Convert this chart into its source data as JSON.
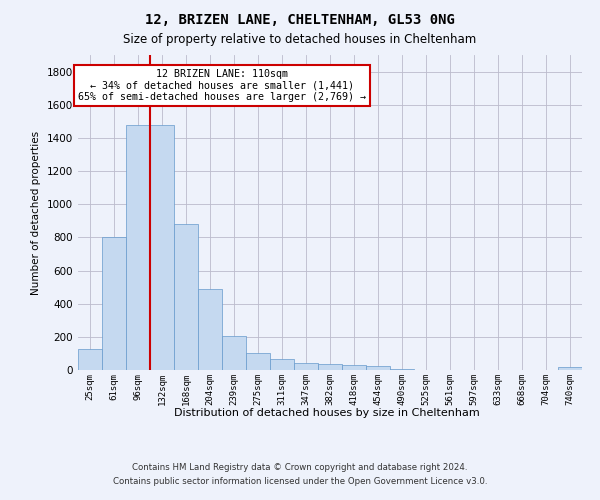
{
  "title1": "12, BRIZEN LANE, CHELTENHAM, GL53 0NG",
  "title2": "Size of property relative to detached houses in Cheltenham",
  "xlabel": "Distribution of detached houses by size in Cheltenham",
  "ylabel": "Number of detached properties",
  "categories": [
    "25sqm",
    "61sqm",
    "96sqm",
    "132sqm",
    "168sqm",
    "204sqm",
    "239sqm",
    "275sqm",
    "311sqm",
    "347sqm",
    "382sqm",
    "418sqm",
    "454sqm",
    "490sqm",
    "525sqm",
    "561sqm",
    "597sqm",
    "633sqm",
    "668sqm",
    "704sqm",
    "740sqm"
  ],
  "values": [
    125,
    800,
    1480,
    1480,
    880,
    490,
    205,
    105,
    65,
    45,
    35,
    28,
    22,
    5,
    0,
    0,
    0,
    0,
    0,
    0,
    18
  ],
  "bar_color": "#c5d9f0",
  "bar_edge_color": "#6699cc",
  "annotation_text": "12 BRIZEN LANE: 110sqm\n← 34% of detached houses are smaller (1,441)\n65% of semi-detached houses are larger (2,769) →",
  "annotation_box_color": "#ffffff",
  "annotation_border_color": "#cc0000",
  "ylim": [
    0,
    1900
  ],
  "yticks": [
    0,
    200,
    400,
    600,
    800,
    1000,
    1200,
    1400,
    1600,
    1800
  ],
  "footer1": "Contains HM Land Registry data © Crown copyright and database right 2024.",
  "footer2": "Contains public sector information licensed under the Open Government Licence v3.0.",
  "background_color": "#eef2fb",
  "plot_bg_color": "#eef2fb",
  "grid_color": "#bbbbcc",
  "red_line_color": "#cc0000",
  "red_line_x": 2.5
}
